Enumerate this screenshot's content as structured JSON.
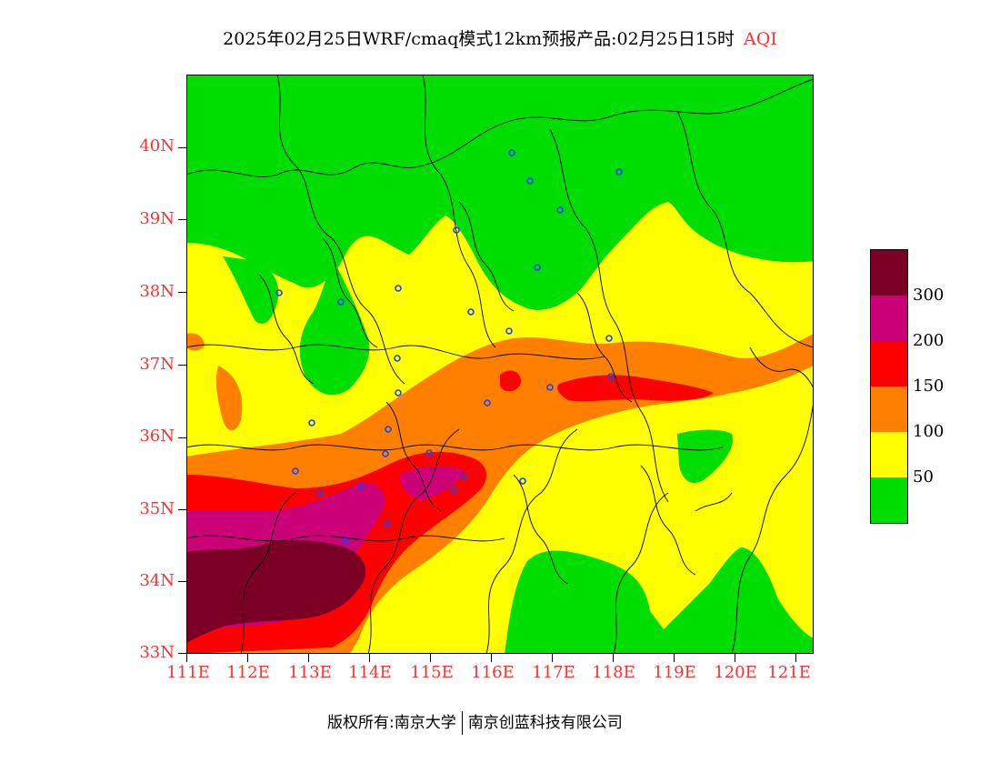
{
  "title": {
    "main": "2025年02月25日WRF/cmaq模式12km预报产品:02月25日15时",
    "variable": "AQI"
  },
  "axes": {
    "lat_labels": [
      "40N",
      "39N",
      "38N",
      "37N",
      "36N",
      "35N",
      "34N",
      "33N"
    ],
    "lon_labels": [
      "111E",
      "112E",
      "113E",
      "114E",
      "115E",
      "116E",
      "117E",
      "118E",
      "119E",
      "120E",
      "121E"
    ]
  },
  "legend": {
    "levels": [
      "300",
      "200",
      "150",
      "100",
      "50"
    ],
    "colors": [
      "#7a0025",
      "#cc0077",
      "#ff0000",
      "#ff7f00",
      "#ffff00",
      "#00dd00"
    ]
  },
  "footer": {
    "left": "版权所有:南京大学",
    "right": "南京创蓝科技有限公司"
  },
  "colors": {
    "good": "#00dd00",
    "moderate": "#ffff00",
    "unhealthy_sensitive": "#ff7f00",
    "unhealthy": "#ff0000",
    "very_unhealthy": "#cc0077",
    "hazardous": "#7a0025",
    "label_red": "#ff3030",
    "station_marker": "#1e40ff"
  }
}
